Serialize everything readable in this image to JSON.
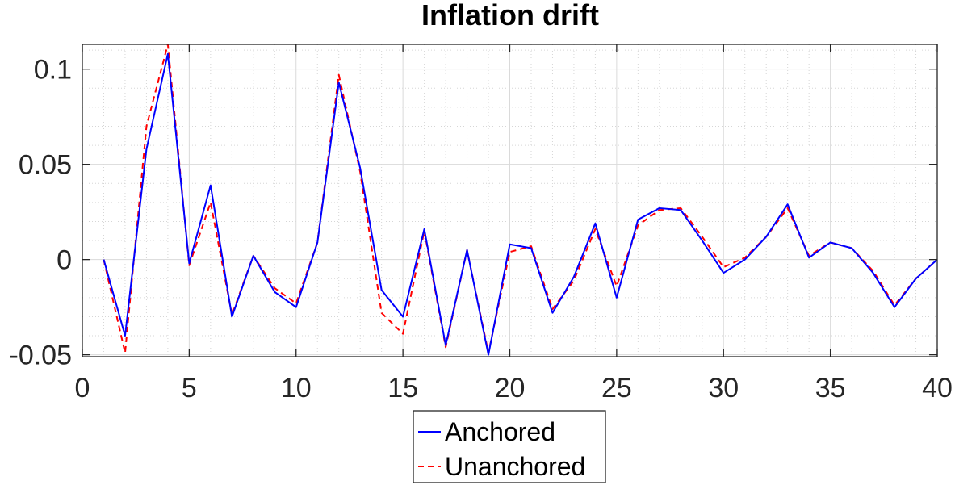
{
  "chart_data": {
    "type": "line",
    "title": "Inflation drift",
    "xlabel": "",
    "ylabel": "",
    "xlim": [
      0,
      40
    ],
    "ylim": [
      -0.051,
      0.113
    ],
    "xticks": [
      0,
      5,
      10,
      15,
      20,
      25,
      30,
      35,
      40
    ],
    "xtick_labels": [
      "0",
      "5",
      "10",
      "15",
      "20",
      "25",
      "30",
      "35",
      "40"
    ],
    "yticks": [
      -0.05,
      0,
      0.05,
      0.1
    ],
    "ytick_labels": [
      "-0.05",
      "0",
      "0.05",
      "0.1"
    ],
    "grid": "on",
    "minor_grid": "on",
    "legend_placement": "bottom-outside",
    "x": [
      1,
      2,
      3,
      4,
      5,
      6,
      7,
      8,
      9,
      10,
      11,
      12,
      13,
      14,
      15,
      16,
      17,
      18,
      19,
      20,
      21,
      22,
      23,
      24,
      25,
      26,
      27,
      28,
      29,
      30,
      31,
      32,
      33,
      34,
      35,
      36,
      37,
      38,
      39,
      40
    ],
    "series": [
      {
        "name": "Anchored",
        "color": "#0000ff",
        "line_style": "solid",
        "values": [
          0.0,
          -0.04,
          0.058,
          0.108,
          -0.002,
          0.039,
          -0.03,
          0.002,
          -0.017,
          -0.025,
          0.009,
          0.093,
          0.048,
          -0.016,
          -0.03,
          0.016,
          -0.045,
          0.005,
          -0.05,
          0.008,
          0.006,
          -0.028,
          -0.009,
          0.019,
          -0.02,
          0.021,
          0.027,
          0.026,
          0.01,
          -0.007,
          -0.0,
          0.012,
          0.029,
          0.001,
          0.009,
          0.006,
          -0.007,
          -0.025,
          -0.01,
          -0.0
        ]
      },
      {
        "name": "Unanchored",
        "color": "#ff0000",
        "line_style": "dashed",
        "values": [
          0.0,
          -0.049,
          0.07,
          0.113,
          -0.003,
          0.03,
          -0.029,
          0.002,
          -0.015,
          -0.023,
          0.009,
          0.097,
          0.046,
          -0.028,
          -0.039,
          0.015,
          -0.046,
          0.005,
          -0.049,
          0.004,
          0.007,
          -0.026,
          -0.011,
          0.016,
          -0.014,
          0.018,
          0.026,
          0.027,
          0.012,
          -0.004,
          0.001,
          0.012,
          0.027,
          0.002,
          0.009,
          0.006,
          -0.006,
          -0.024,
          -0.01,
          -0.0
        ]
      }
    ]
  }
}
